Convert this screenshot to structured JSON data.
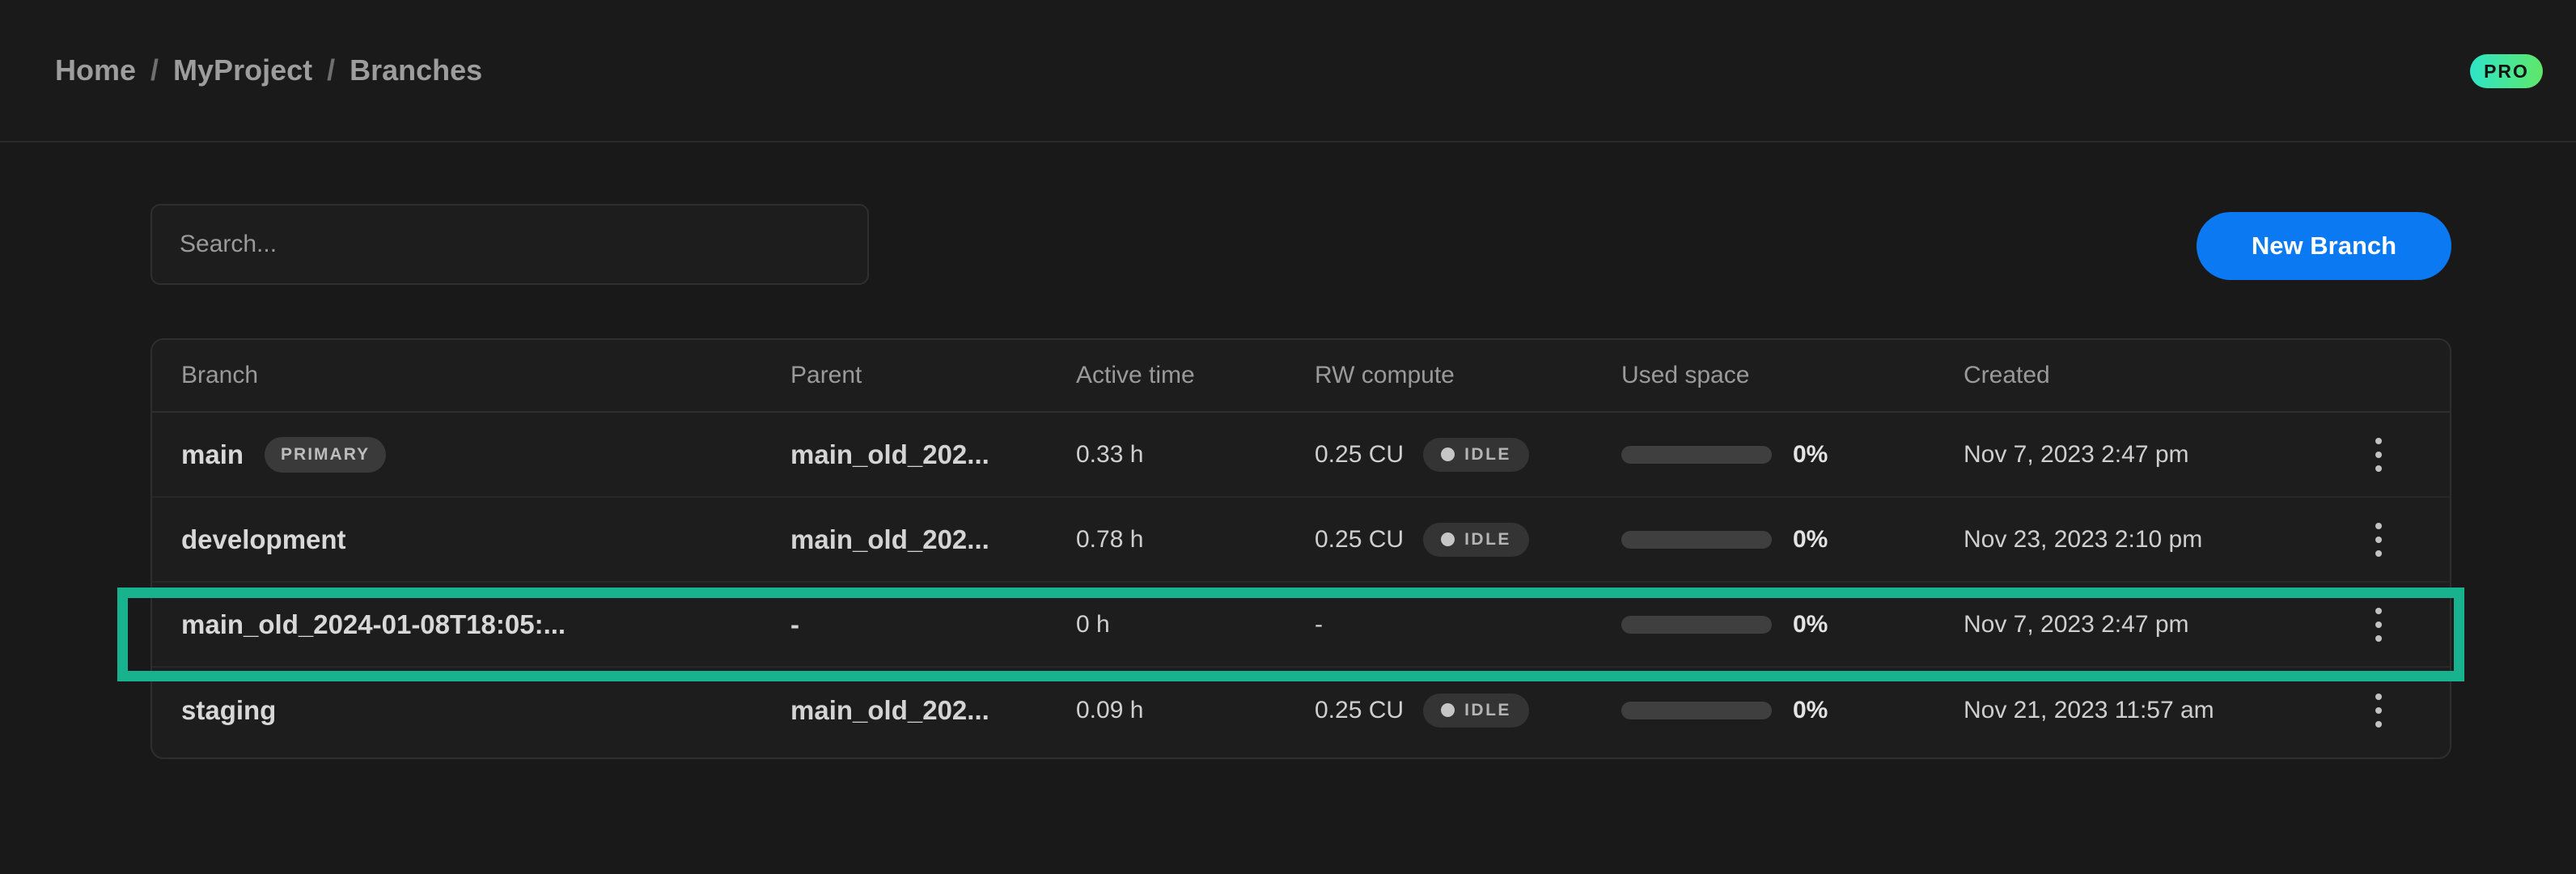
{
  "breadcrumb": {
    "items": [
      "Home",
      "MyProject",
      "Branches"
    ],
    "separator": "/"
  },
  "plan_badge": "PRO",
  "toolbar": {
    "search_placeholder": "Search...",
    "new_branch_label": "New Branch"
  },
  "table": {
    "columns": [
      "Branch",
      "Parent",
      "Active time",
      "RW compute",
      "Used space",
      "Created"
    ],
    "rows": [
      {
        "branch": "main",
        "badge": "PRIMARY",
        "parent": "main_old_202...",
        "active_time": "0.33 h",
        "rw_compute": "0.25 CU",
        "compute_state": "IDLE",
        "used_space_percent": "0%",
        "used_space_value": 0,
        "created": "Nov 7, 2023 2:47 pm",
        "highlighted": false
      },
      {
        "branch": "development",
        "badge": null,
        "parent": "main_old_202...",
        "active_time": "0.78 h",
        "rw_compute": "0.25 CU",
        "compute_state": "IDLE",
        "used_space_percent": "0%",
        "used_space_value": 0,
        "created": "Nov 23, 2023 2:10 pm",
        "highlighted": false
      },
      {
        "branch": "main_old_2024-01-08T18:05:...",
        "badge": null,
        "parent": "-",
        "active_time": "0 h",
        "rw_compute": "-",
        "compute_state": null,
        "used_space_percent": "0%",
        "used_space_value": 0,
        "created": "Nov 7, 2023 2:47 pm",
        "highlighted": true
      },
      {
        "branch": "staging",
        "badge": null,
        "parent": "main_old_202...",
        "active_time": "0.09 h",
        "rw_compute": "0.25 CU",
        "compute_state": "IDLE",
        "used_space_percent": "0%",
        "used_space_value": 0,
        "created": "Nov 21, 2023 11:57 am",
        "highlighted": false
      }
    ]
  },
  "annotation": {
    "type": "highlight-box",
    "target_row": "main_old_2024-01-08T18:05:...",
    "color": "#19b28e"
  },
  "colors": {
    "accent_blue": "#0b79f1",
    "highlight_teal": "#19b28e",
    "pro_gradient_start": "#2ee5c8",
    "pro_gradient_end": "#5fe669"
  }
}
